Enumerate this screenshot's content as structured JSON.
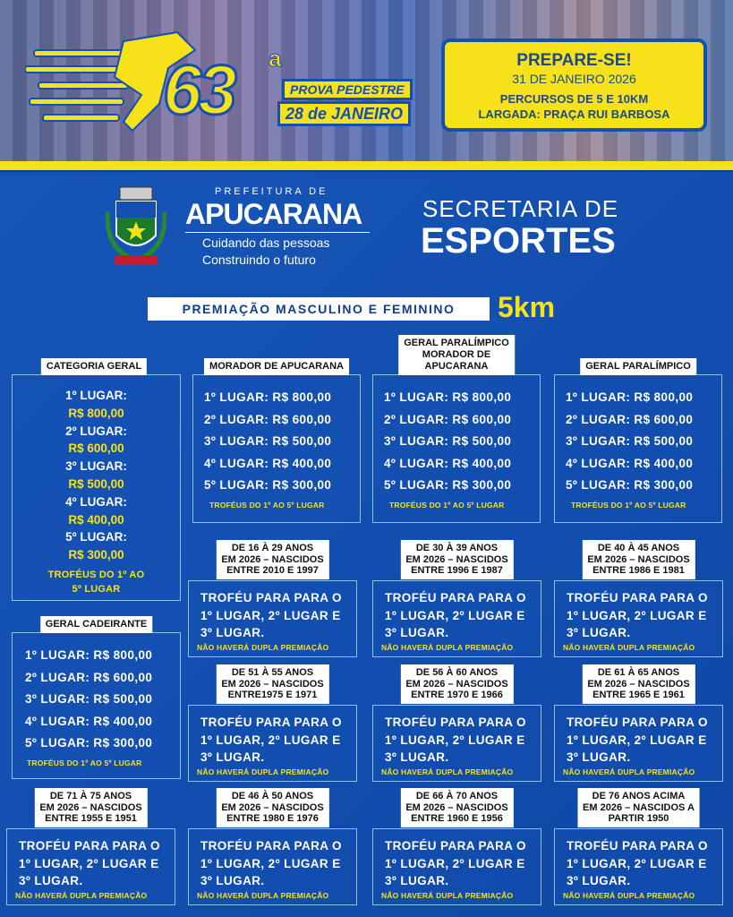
{
  "header": {
    "edition_number": "63",
    "edition_ordinal": "a",
    "event_name": "PROVA PEDESTRE",
    "event_date": "28 de JANEIRO",
    "notice": {
      "title": "PREPARE-SE!",
      "date": "31 DE JANEIRO 2026",
      "routes": "PERCURSOS DE 5 E 10KM",
      "start": "LARGADA: PRAÇA RUI BARBOSA"
    }
  },
  "logos": {
    "crest_text": "APUCARANA",
    "prefeitura_small": "PREFEITURA DE",
    "prefeitura_name": "APUCARANA",
    "slogan_1": "Cuidando das pessoas",
    "slogan_2": "Construindo o futuro",
    "secretaria_1": "SECRETARIA DE",
    "secretaria_2": "ESPORTES"
  },
  "section": {
    "title": "PREMIAÇÃO MASCULINO E FEMININO",
    "distance": "5km"
  },
  "colors": {
    "blue": "#1350b0",
    "yellow": "#f7e21a"
  },
  "categoria_geral": {
    "label": "CATEGORIA GERAL",
    "places": [
      {
        "place": "1º LUGAR:",
        "value": "R$ 800,00"
      },
      {
        "place": "2º LUGAR:",
        "value": "R$ 600,00"
      },
      {
        "place": "3º LUGAR:",
        "value": "R$ 500,00"
      },
      {
        "place": "4º LUGAR:",
        "value": "R$ 400,00"
      },
      {
        "place": "5º LUGAR:",
        "value": "R$ 300,00"
      }
    ],
    "trophies_1": "TROFÉUS DO 1º AO",
    "trophies_2": "5º LUGAR"
  },
  "prize_boxes": [
    {
      "label": "MORADOR DE APUCARANA",
      "lines": [
        "1º LUGAR: R$ 800,00",
        "2º LUGAR: R$ 600,00",
        "3º LUGAR: R$ 500,00",
        "4º LUGAR: R$ 400,00",
        "5º LUGAR: R$ 300,00"
      ],
      "trophies": "TROFÉUS DO 1º AO 5º LUGAR"
    },
    {
      "label": "GERAL PARALÍMPICO\nMORADOR DE\nAPUCARANA",
      "lines": [
        "1º LUGAR: R$ 800,00",
        "2º LUGAR: R$ 600,00",
        "3º LUGAR: R$ 500,00",
        "4º LUGAR: R$ 400,00",
        "5º LUGAR: R$ 300,00"
      ],
      "trophies": "TROFÉUS DO 1º AO 5º LUGAR"
    },
    {
      "label": "GERAL PARALÍMPICO",
      "lines": [
        "1º LUGAR: R$ 800,00",
        "2º LUGAR: R$ 600,00",
        "3º LUGAR: R$ 500,00",
        "4º LUGAR: R$ 400,00",
        "5º LUGAR: R$ 300,00"
      ],
      "trophies": "TROFÉUS DO 1º AO 5º LUGAR"
    },
    {
      "label": "GERAL CADEIRANTE",
      "lines": [
        "1º LUGAR: R$ 800,00",
        "2º LUGAR: R$ 600,00",
        "3º LUGAR: R$ 500,00",
        "4º LUGAR: R$ 400,00",
        "5º LUGAR: R$ 300,00"
      ],
      "trophies": "TROFÉUS DO 1º AO 5º LUGAR"
    }
  ],
  "age_groups": [
    {
      "label": "DE 16 À 29 ANOS\nEM 2026 – NASCIDOS\nENTRE 2010 E 1997",
      "text": "TROFÉU PARA PARA O\n1º LUGAR, 2º LUGAR E\n3º LUGAR.",
      "note": "NÃO HAVERÁ DUPLA PREMIAÇÃO"
    },
    {
      "label": "DE 30 À 39 ANOS\nEM 2026 – NASCIDOS\nENTRE 1996 E 1987",
      "text": "TROFÉU PARA PARA O\n1º LUGAR, 2º LUGAR E\n3º LUGAR.",
      "note": "NÃO HAVERÁ DUPLA PREMIAÇÃO"
    },
    {
      "label": "DE 40 À 45 ANOS\nEM 2026 – NASCIDOS\nENTRE 1986 E 1981",
      "text": "TROFÉU PARA PARA O\n1º LUGAR, 2º LUGAR E\n3º LUGAR.",
      "note": "NÃO HAVERÁ DUPLA PREMIAÇÃO"
    },
    {
      "label": "DE 51 À 55 ANOS\nEM 2026 – NASCIDOS\nENTRE1975 E 1971",
      "text": "TROFÉU PARA PARA O\n1º LUGAR, 2º LUGAR E\n3º LUGAR.",
      "note": "NÃO HAVERÁ DUPLA PREMIAÇÃO"
    },
    {
      "label": "DE 56 À 60 ANOS\nEM 2026 – NASCIDOS\nENTRE 1970 E 1966",
      "text": "TROFÉU PARA PARA O\n1º LUGAR, 2º LUGAR E\n3º LUGAR.",
      "note": "NÃO HAVERÁ DUPLA PREMIAÇÃO"
    },
    {
      "label": "DE 61 À 65 ANOS\nEM 2026 – NASCIDOS\nENTRE 1965 E 1961",
      "text": "TROFÉU PARA PARA O\n1º LUGAR, 2º LUGAR E\n3º LUGAR.",
      "note": "NÃO HAVERÁ DUPLA PREMIAÇÃO"
    },
    {
      "label": "DE 71 À 75 ANOS\nEM 2026 – NASCIDOS\nENTRE 1955 E 1951",
      "text": "TROFÉU PARA PARA O\n1º LUGAR, 2º LUGAR E\n3º LUGAR.",
      "note": "NÃO HAVERÁ DUPLA PREMIAÇÃO"
    },
    {
      "label": "DE 46 À 50 ANOS\nEM 2026 – NASCIDOS\nENTRE 1980 E 1976",
      "text": "TROFÉU PARA PARA O\n1º LUGAR, 2º LUGAR E\n3º LUGAR.",
      "note": "NÃO HAVERÁ DUPLA PREMIAÇÃO"
    },
    {
      "label": "DE 66 À 70 ANOS\nEM 2026 – NASCIDOS\nENTRE 1960 E 1956",
      "text": "TROFÉU PARA PARA O\n1º LUGAR, 2º LUGAR E\n3º LUGAR.",
      "note": "NÃO HAVERÁ DUPLA PREMIAÇÃO"
    },
    {
      "label": "DE 76 ANOS ACIMA\nEM 2026 – NASCIDOS A\nPARTIR 1950",
      "text": "TROFÉU PARA PARA O\n1º LUGAR, 2º LUGAR E\n3º LUGAR.",
      "note": "NÃO HAVERÁ DUPLA PREMIAÇÃO"
    }
  ]
}
